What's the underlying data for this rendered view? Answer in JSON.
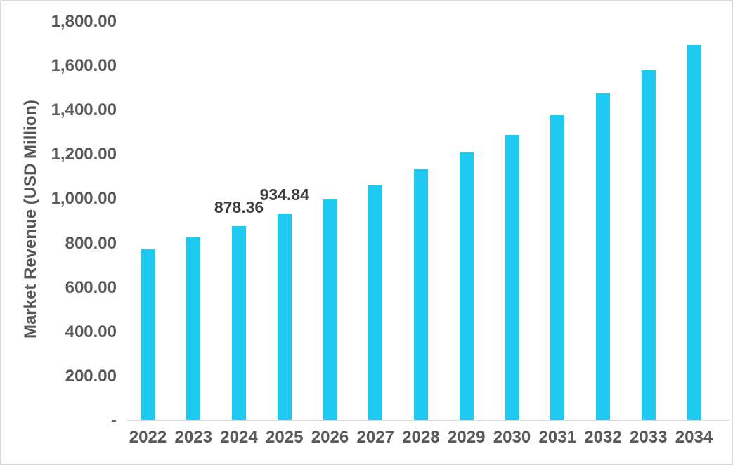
{
  "chart_data": {
    "type": "bar",
    "title": "",
    "xlabel": "",
    "ylabel": "Market Revenue (USD Million)",
    "categories": [
      "2022",
      "2023",
      "2024",
      "2025",
      "2026",
      "2027",
      "2028",
      "2029",
      "2030",
      "2031",
      "2032",
      "2033",
      "2034"
    ],
    "values": [
      772,
      826,
      878.36,
      934.84,
      998,
      1061,
      1134,
      1210,
      1291,
      1380,
      1478,
      1581,
      1696
    ],
    "data_labels": [
      "",
      "",
      "878.36",
      "934.84",
      "",
      "",
      "",
      "",
      "",
      "",
      "",
      "",
      ""
    ],
    "ylim": [
      0,
      1800
    ],
    "y_ticks": [
      {
        "value": 1800,
        "label": "1,800.00"
      },
      {
        "value": 1600,
        "label": "1,600.00"
      },
      {
        "value": 1400,
        "label": "1,400.00"
      },
      {
        "value": 1200,
        "label": "1,200.00"
      },
      {
        "value": 1000,
        "label": "1,000.00"
      },
      {
        "value": 800,
        "label": "800.00"
      },
      {
        "value": 600,
        "label": "600.00"
      },
      {
        "value": 400,
        "label": "400.00"
      },
      {
        "value": 200,
        "label": "200.00"
      },
      {
        "value": 0,
        "label": "-"
      }
    ],
    "grid": false,
    "legend": false,
    "legend_position": "none",
    "colors": {
      "bar": "#1ec9f2",
      "axis_line": "#d9d9d9",
      "tick_label": "#595959",
      "data_label": "#3f3f3f",
      "axis_title": "#555555",
      "background": "#ffffff",
      "frame_border": "#d9d9d9"
    }
  }
}
